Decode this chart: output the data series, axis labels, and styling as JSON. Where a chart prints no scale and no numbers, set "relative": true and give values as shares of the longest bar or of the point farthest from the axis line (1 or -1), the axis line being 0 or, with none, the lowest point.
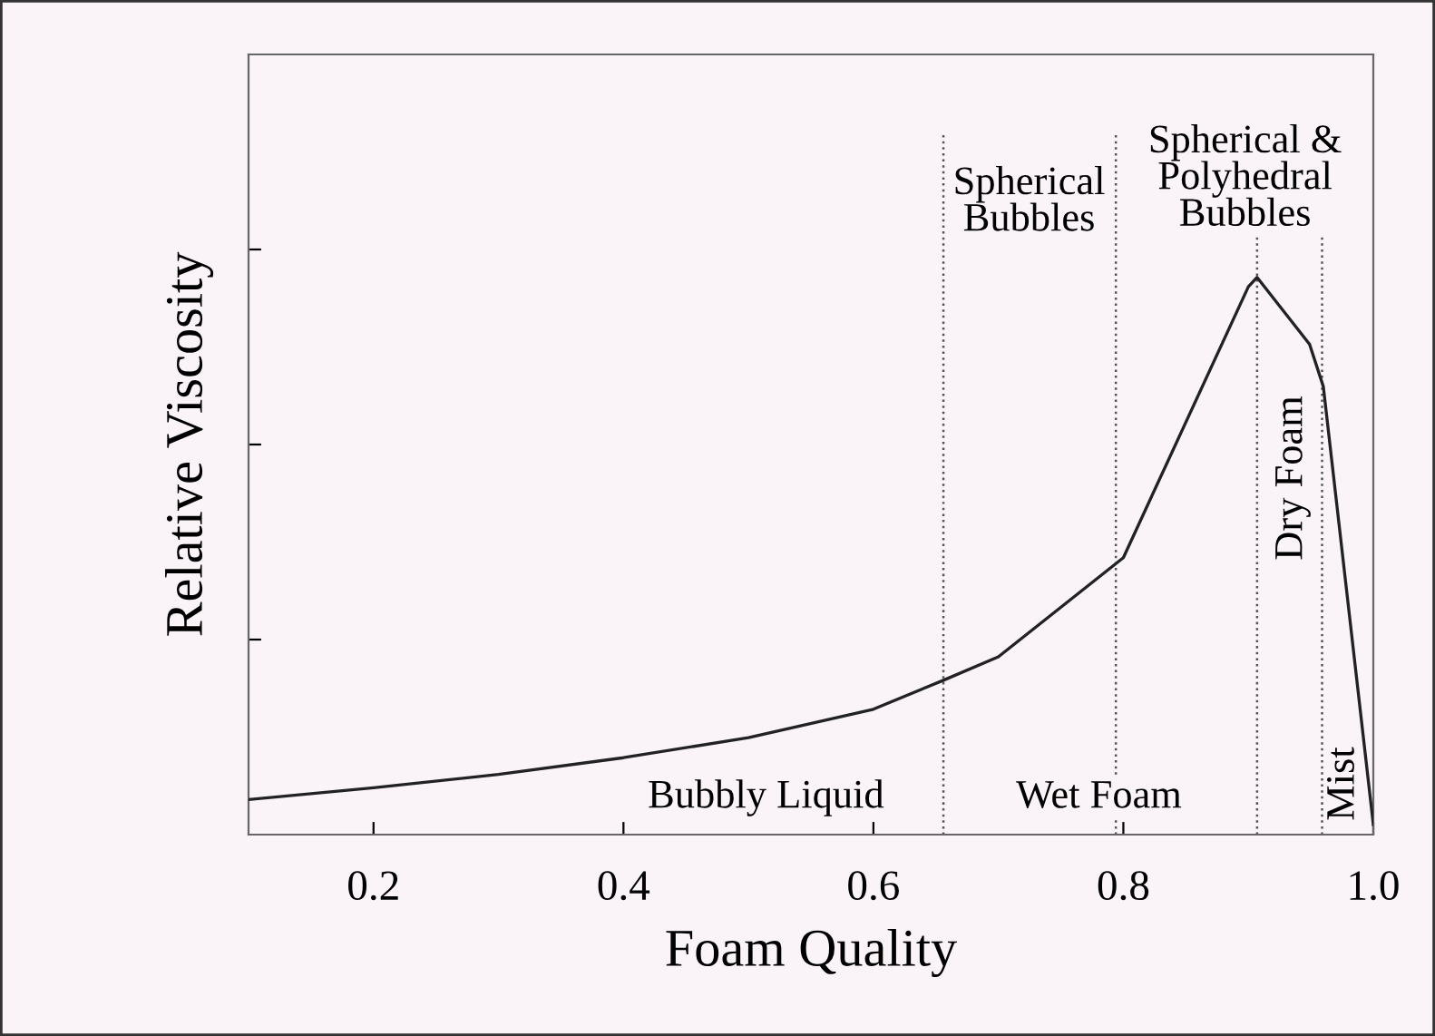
{
  "chart_data": {
    "type": "line",
    "xlabel": "Foam Quality",
    "ylabel": "Relative Viscosity",
    "relative": true,
    "tick_labels": "x",
    "marker": "none",
    "line_style": "solid",
    "xlim": [
      0.1,
      1.0
    ],
    "xticks": [
      {
        "value": 0.2,
        "label": "0.2"
      },
      {
        "value": 0.4,
        "label": "0.4"
      },
      {
        "value": 0.6,
        "label": "0.6"
      },
      {
        "value": 0.8,
        "label": "0.8"
      },
      {
        "value": 1.0,
        "label": "1.0"
      }
    ],
    "series": [
      {
        "color": "#222222",
        "x": [
          0.1,
          0.2,
          0.3,
          0.4,
          0.5,
          0.6,
          0.656,
          0.7,
          0.8,
          0.9,
          0.907,
          0.949,
          0.96,
          1.0
        ],
        "values": [
          0.063,
          0.084,
          0.108,
          0.138,
          0.174,
          0.225,
          0.277,
          0.319,
          0.497,
          0.983,
          1.0,
          0.88,
          0.804,
          0.018
        ]
      }
    ],
    "ref_lines": [
      {
        "axis": "x",
        "value": 0.656,
        "line_style": "dotted"
      },
      {
        "axis": "x",
        "value": 0.794,
        "line_style": "dotted"
      },
      {
        "axis": "x",
        "value": 0.907,
        "line_style": "dotted"
      },
      {
        "axis": "x",
        "value": 0.959,
        "line_style": "dotted"
      }
    ],
    "annotations": [
      "Bubbly Liquid",
      "Wet Foam",
      "Dry Foam",
      "Mist",
      "Spherical Bubbles",
      "Spherical & Polyhedral Bubbles"
    ]
  }
}
